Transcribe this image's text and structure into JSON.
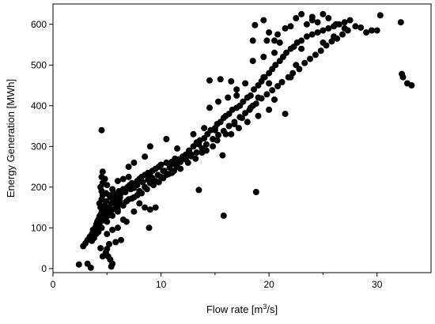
{
  "chart_data": {
    "type": "scatter",
    "title": "",
    "xlabel": "Flow rate [m",
    "xlabel_sup": "3",
    "xlabel_tail": "/s]",
    "ylabel": "Energy Generation [MWh]",
    "xlim": [
      0,
      35
    ],
    "ylim": [
      -10,
      650
    ],
    "xticks": [
      0,
      10,
      20,
      30
    ],
    "xtick_labels": [
      "0",
      "10",
      "20",
      "30"
    ],
    "yticks": [
      0,
      100,
      200,
      300,
      400,
      500,
      600
    ],
    "ytick_labels": [
      "0",
      "100",
      "200",
      "300",
      "400",
      "500",
      "600"
    ],
    "grid": false,
    "marker_color": "#000000",
    "series": [
      {
        "points": [
          [
            2.4,
            10
          ],
          [
            3.2,
            12
          ],
          [
            3.5,
            2
          ],
          [
            2.8,
            55
          ],
          [
            3.0,
            62
          ],
          [
            3.2,
            70
          ],
          [
            3.4,
            78
          ],
          [
            3.6,
            85
          ],
          [
            3.7,
            95
          ],
          [
            3.9,
            100
          ],
          [
            4.0,
            108
          ],
          [
            4.1,
            115
          ],
          [
            4.2,
            120
          ],
          [
            4.3,
            128
          ],
          [
            4.4,
            132
          ],
          [
            4.5,
            138
          ],
          [
            4.4,
            150
          ],
          [
            4.3,
            160
          ],
          [
            4.5,
            170
          ],
          [
            4.6,
            180
          ],
          [
            4.5,
            190
          ],
          [
            4.4,
            200
          ],
          [
            4.6,
            210
          ],
          [
            4.5,
            225
          ],
          [
            4.6,
            238
          ],
          [
            4.7,
            145
          ],
          [
            4.8,
            155
          ],
          [
            4.9,
            165
          ],
          [
            5.0,
            140
          ],
          [
            5.1,
            130
          ],
          [
            5.2,
            150
          ],
          [
            5.3,
            175
          ],
          [
            5.4,
            160
          ],
          [
            5.5,
            145
          ],
          [
            5.6,
            170
          ],
          [
            5.7,
            180
          ],
          [
            5.8,
            160
          ],
          [
            5.9,
            150
          ],
          [
            6.0,
            175
          ],
          [
            6.1,
            190
          ],
          [
            6.2,
            165
          ],
          [
            6.3,
            185
          ],
          [
            6.5,
            195
          ],
          [
            6.7,
            188
          ],
          [
            6.9,
            200
          ],
          [
            7.1,
            205
          ],
          [
            7.3,
            210
          ],
          [
            7.5,
            198
          ],
          [
            7.8,
            215
          ],
          [
            8.0,
            220
          ],
          [
            8.2,
            225
          ],
          [
            8.5,
            230
          ],
          [
            8.8,
            235
          ],
          [
            9.0,
            228
          ],
          [
            9.2,
            240
          ],
          [
            9.5,
            245
          ],
          [
            9.8,
            250
          ],
          [
            10.0,
            255
          ],
          [
            10.3,
            240
          ],
          [
            10.5,
            260
          ],
          [
            10.8,
            255
          ],
          [
            11.0,
            262
          ],
          [
            11.3,
            270
          ],
          [
            11.6,
            268
          ],
          [
            12.0,
            275
          ],
          [
            12.3,
            280
          ],
          [
            12.6,
            290
          ],
          [
            13.0,
            300
          ],
          [
            13.3,
            310
          ],
          [
            13.6,
            315
          ],
          [
            14.0,
            320
          ],
          [
            14.3,
            330
          ],
          [
            14.6,
            340
          ],
          [
            15.0,
            345
          ],
          [
            15.2,
            355
          ],
          [
            15.5,
            360
          ],
          [
            15.8,
            370
          ],
          [
            16.0,
            375
          ],
          [
            16.3,
            380
          ],
          [
            16.6,
            390
          ],
          [
            17.0,
            395
          ],
          [
            17.3,
            400
          ],
          [
            17.6,
            410
          ],
          [
            18.0,
            420
          ],
          [
            18.3,
            425
          ],
          [
            18.6,
            440
          ],
          [
            19.0,
            450
          ],
          [
            19.3,
            460
          ],
          [
            19.6,
            470
          ],
          [
            20.0,
            480
          ],
          [
            20.3,
            490
          ],
          [
            20.6,
            500
          ],
          [
            21.0,
            510
          ],
          [
            21.3,
            520
          ],
          [
            21.6,
            530
          ],
          [
            22.0,
            540
          ],
          [
            22.3,
            545
          ],
          [
            22.6,
            555
          ],
          [
            23.0,
            560
          ],
          [
            23.5,
            570
          ],
          [
            24.0,
            575
          ],
          [
            24.5,
            580
          ],
          [
            25.0,
            585
          ],
          [
            25.5,
            590
          ],
          [
            26.0,
            595
          ],
          [
            26.5,
            600
          ],
          [
            27.0,
            605
          ],
          [
            28.0,
            595
          ],
          [
            29.0,
            580
          ],
          [
            30.0,
            585
          ],
          [
            30.3,
            622
          ],
          [
            32.2,
            605
          ],
          [
            32.3,
            478
          ],
          [
            32.4,
            470
          ],
          [
            32.8,
            455
          ],
          [
            33.2,
            450
          ],
          [
            25.0,
            625
          ],
          [
            23.0,
            625
          ],
          [
            24.0,
            610
          ],
          [
            27.5,
            610
          ],
          [
            20.5,
            415
          ],
          [
            19.5,
            470
          ],
          [
            18.5,
            400
          ],
          [
            17.0,
            440
          ],
          [
            16.5,
            460
          ],
          [
            15.5,
            465
          ],
          [
            14.5,
            462
          ],
          [
            21.5,
            380
          ],
          [
            20.0,
            390
          ],
          [
            19.0,
            375
          ],
          [
            18.2,
            390
          ],
          [
            17.5,
            370
          ],
          [
            16.8,
            355
          ],
          [
            16.0,
            330
          ],
          [
            15.0,
            340
          ],
          [
            14.0,
            345
          ],
          [
            13.5,
            305
          ],
          [
            12.8,
            280
          ],
          [
            12.0,
            270
          ],
          [
            11.5,
            250
          ],
          [
            11.0,
            235
          ],
          [
            10.5,
            230
          ],
          [
            10.0,
            225
          ],
          [
            9.5,
            215
          ],
          [
            9.0,
            210
          ],
          [
            8.5,
            200
          ],
          [
            8.0,
            190
          ],
          [
            7.5,
            175
          ],
          [
            7.0,
            170
          ],
          [
            6.5,
            155
          ],
          [
            6.0,
            140
          ],
          [
            5.5,
            130
          ],
          [
            5.0,
            115
          ],
          [
            4.5,
            100
          ],
          [
            4.2,
            90
          ],
          [
            4.0,
            85
          ],
          [
            3.8,
            75
          ],
          [
            3.6,
            68
          ],
          [
            4.5,
            340
          ],
          [
            15.8,
            130
          ],
          [
            13.5,
            193
          ],
          [
            18.8,
            188
          ],
          [
            15.7,
            278
          ],
          [
            5.5,
            195
          ],
          [
            5.0,
            205
          ],
          [
            4.8,
            220
          ],
          [
            6.0,
            215
          ],
          [
            6.5,
            220
          ],
          [
            7.0,
            225
          ],
          [
            9.5,
            150
          ],
          [
            9.0,
            145
          ],
          [
            8.5,
            150
          ],
          [
            8.9,
            100
          ],
          [
            7.5,
            140
          ],
          [
            8.0,
            160
          ],
          [
            6.8,
            115
          ],
          [
            6.5,
            120
          ],
          [
            6.3,
            70
          ],
          [
            5.8,
            65
          ],
          [
            5.2,
            60
          ],
          [
            5.0,
            48
          ],
          [
            4.9,
            40
          ],
          [
            5.1,
            30
          ],
          [
            5.3,
            22
          ],
          [
            5.4,
            5
          ],
          [
            5.5,
            12
          ],
          [
            4.6,
            30
          ],
          [
            4.4,
            50
          ],
          [
            5.0,
            85
          ],
          [
            5.5,
            95
          ],
          [
            6.0,
            100
          ],
          [
            7.5,
            260
          ],
          [
            7.0,
            250
          ],
          [
            8.5,
            275
          ],
          [
            9.0,
            300
          ],
          [
            10.5,
            318
          ],
          [
            11.5,
            295
          ],
          [
            13.0,
            330
          ],
          [
            14.5,
            395
          ],
          [
            15.3,
            410
          ],
          [
            16.2,
            420
          ],
          [
            17.0,
            425
          ],
          [
            17.8,
            455
          ],
          [
            18.5,
            510
          ],
          [
            19.5,
            520
          ],
          [
            20.5,
            530
          ],
          [
            21.0,
            555
          ],
          [
            18.5,
            560
          ],
          [
            18.7,
            598
          ],
          [
            19.5,
            610
          ],
          [
            20.8,
            575
          ],
          [
            21.5,
            590
          ],
          [
            22.0,
            595
          ],
          [
            23.5,
            600
          ],
          [
            24.5,
            605
          ],
          [
            25.5,
            615
          ],
          [
            26.2,
            600
          ],
          [
            27.0,
            590
          ],
          [
            26.0,
            570
          ],
          [
            25.0,
            555
          ],
          [
            23.0,
            540
          ],
          [
            22.5,
            500
          ],
          [
            22.0,
            470
          ],
          [
            20.0,
            455
          ],
          [
            19.0,
            420
          ],
          [
            18.0,
            360
          ],
          [
            17.2,
            345
          ],
          [
            16.5,
            330
          ],
          [
            15.2,
            315
          ],
          [
            14.8,
            300
          ],
          [
            14.2,
            290
          ],
          [
            13.8,
            285
          ],
          [
            13.2,
            270
          ],
          [
            12.5,
            260
          ],
          [
            11.8,
            245
          ],
          [
            11.2,
            240
          ],
          [
            10.7,
            232
          ],
          [
            10.2,
            222
          ],
          [
            9.8,
            212
          ],
          [
            9.3,
            205
          ],
          [
            8.7,
            195
          ],
          [
            8.2,
            185
          ],
          [
            7.8,
            180
          ],
          [
            7.3,
            172
          ],
          [
            6.8,
            165
          ],
          [
            6.2,
            158
          ],
          [
            5.8,
            148
          ],
          [
            5.3,
            140
          ],
          [
            4.9,
            128
          ],
          [
            4.6,
            118
          ],
          [
            4.3,
            108
          ],
          [
            4.1,
            98
          ],
          [
            6.0,
            145
          ],
          [
            6.2,
            175
          ],
          [
            5.6,
            185
          ],
          [
            5.2,
            180
          ],
          [
            4.9,
            185
          ],
          [
            7.2,
            195
          ],
          [
            7.8,
            205
          ],
          [
            8.3,
            212
          ],
          [
            8.8,
            218
          ],
          [
            9.2,
            222
          ],
          [
            9.7,
            230
          ],
          [
            10.2,
            240
          ],
          [
            10.8,
            248
          ],
          [
            11.3,
            256
          ],
          [
            11.8,
            262
          ],
          [
            12.3,
            268
          ],
          [
            12.8,
            276
          ],
          [
            13.3,
            285
          ],
          [
            13.8,
            295
          ],
          [
            14.2,
            305
          ],
          [
            14.8,
            318
          ],
          [
            15.3,
            328
          ],
          [
            15.8,
            338
          ],
          [
            16.3,
            350
          ],
          [
            16.8,
            360
          ],
          [
            17.3,
            372
          ],
          [
            17.8,
            382
          ],
          [
            18.3,
            395
          ],
          [
            18.8,
            405
          ],
          [
            19.3,
            418
          ],
          [
            19.8,
            428
          ],
          [
            20.3,
            438
          ],
          [
            20.8,
            448
          ],
          [
            21.2,
            458
          ],
          [
            21.8,
            470
          ],
          [
            22.2,
            480
          ],
          [
            22.8,
            490
          ],
          [
            23.3,
            505
          ],
          [
            23.8,
            515
          ],
          [
            24.3,
            525
          ],
          [
            24.8,
            535
          ],
          [
            25.3,
            548
          ],
          [
            25.8,
            558
          ],
          [
            26.3,
            565
          ],
          [
            26.8,
            575
          ],
          [
            27.3,
            585
          ],
          [
            28.5,
            592
          ],
          [
            29.5,
            585
          ],
          [
            22.5,
            615
          ],
          [
            24.0,
            618
          ],
          [
            20.0,
            580
          ],
          [
            19.8,
            560
          ],
          [
            20.5,
            560
          ]
        ]
      }
    ]
  }
}
